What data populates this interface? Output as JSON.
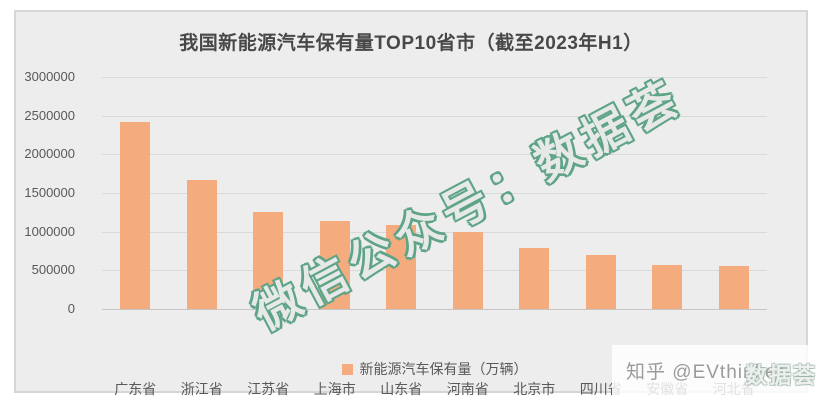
{
  "title": "我国新能源汽车保有量TOP10省市（截至2023年H1）",
  "legend": {
    "label": "新能源汽车保有量（万辆）"
  },
  "watermarks": {
    "diagonal": "微信公众号：数据荟",
    "zhihu": "知乎 @EVthinker",
    "corner": "数据荟"
  },
  "colors": {
    "bar": "#F4AC7F",
    "panel_bg": "#EDEDED",
    "gridline": "#D9D9D9",
    "axis_text": "#595959",
    "title_text": "#484848",
    "watermark_green": "#5FA487",
    "zhihu_text": "#9B9B9B"
  },
  "chart_data": {
    "type": "bar",
    "title": "我国新能源汽车保有量TOP10省市（截至2023年H1）",
    "series_name": "新能源汽车保有量（万辆）",
    "categories": [
      "广东省",
      "浙江省",
      "江苏省",
      "上海市",
      "山东省",
      "河南省",
      "北京市",
      "四川省",
      "安徽省",
      "河北省"
    ],
    "values": [
      2420000,
      1670000,
      1260000,
      1140000,
      1080000,
      1000000,
      790000,
      700000,
      570000,
      550000
    ],
    "ylim": [
      0,
      3000000
    ],
    "ytick_step": 500000,
    "yticks": [
      3000000,
      2500000,
      2000000,
      1500000,
      1000000,
      500000,
      0
    ],
    "grid": true,
    "legend_position": "bottom",
    "xlabel": "",
    "ylabel": ""
  }
}
